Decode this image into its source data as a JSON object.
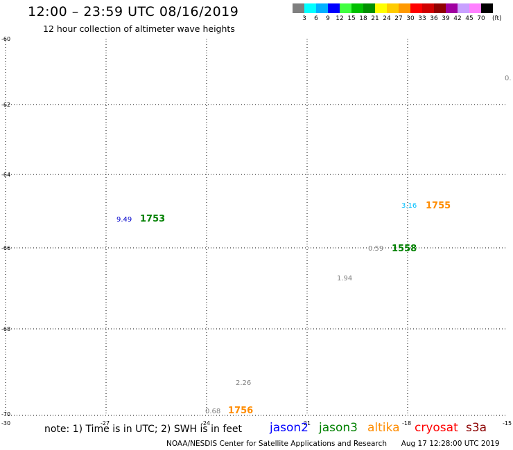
{
  "header": {
    "title": "12:00 – 23:59 UTC 08/16/2019",
    "subtitle": "12 hour collection of altimeter wave heights"
  },
  "legend": {
    "colors": [
      "#7f7f7f",
      "#00ffff",
      "#00b0ff",
      "#0000ff",
      "#40ff40",
      "#00c000",
      "#009000",
      "#ffff00",
      "#ffcc00",
      "#ff9900",
      "#ff0000",
      "#d00000",
      "#900000",
      "#a000a0",
      "#c8a0ff",
      "#ff80ff",
      "#000000"
    ],
    "labels": [
      "3",
      "6",
      "9",
      "12",
      "15",
      "18",
      "21",
      "24",
      "27",
      "30",
      "33",
      "36",
      "39",
      "42",
      "45",
      "70"
    ],
    "unit": "(ft)"
  },
  "axes": {
    "lat_labels": [
      "-60",
      "-62",
      "-64",
      "-66",
      "-68",
      "-70"
    ],
    "lon_labels": [
      "-30",
      "-27",
      "-24",
      "-21",
      "-18",
      "-15"
    ]
  },
  "observations": [
    {
      "text": "0.",
      "color": "#808080",
      "size": "small"
    },
    {
      "text": "9.49",
      "color": "#0000cc",
      "size": "small"
    },
    {
      "text": "1753",
      "color": "#008000",
      "size": "big"
    },
    {
      "text": "3.16",
      "color": "#00bfff",
      "size": "small"
    },
    {
      "text": "1755",
      "color": "#ff8c00",
      "size": "big"
    },
    {
      "text": "0.59",
      "color": "#808080",
      "size": "small"
    },
    {
      "text": "1558",
      "color": "#008000",
      "size": "big"
    },
    {
      "text": "1.94",
      "color": "#808080",
      "size": "small"
    },
    {
      "text": "2.26",
      "color": "#808080",
      "size": "small"
    },
    {
      "text": "0.68",
      "color": "#808080",
      "size": "small"
    },
    {
      "text": "1756",
      "color": "#ff8c00",
      "size": "big"
    }
  ],
  "note": "note: 1) Time is in UTC; 2) SWH is in feet",
  "satellites": [
    {
      "name": "jason2",
      "color": "#0000ff"
    },
    {
      "name": "jason3",
      "color": "#008000"
    },
    {
      "name": "altika",
      "color": "#ff8c00"
    },
    {
      "name": "cryosat",
      "color": "#ff0000"
    },
    {
      "name": "s3a",
      "color": "#8b0000"
    }
  ],
  "footer": {
    "credit": "NOAA/NESDIS Center for Satellite Applications and Research",
    "timestamp": "Aug 17 12:28:00 UTC 2019"
  }
}
